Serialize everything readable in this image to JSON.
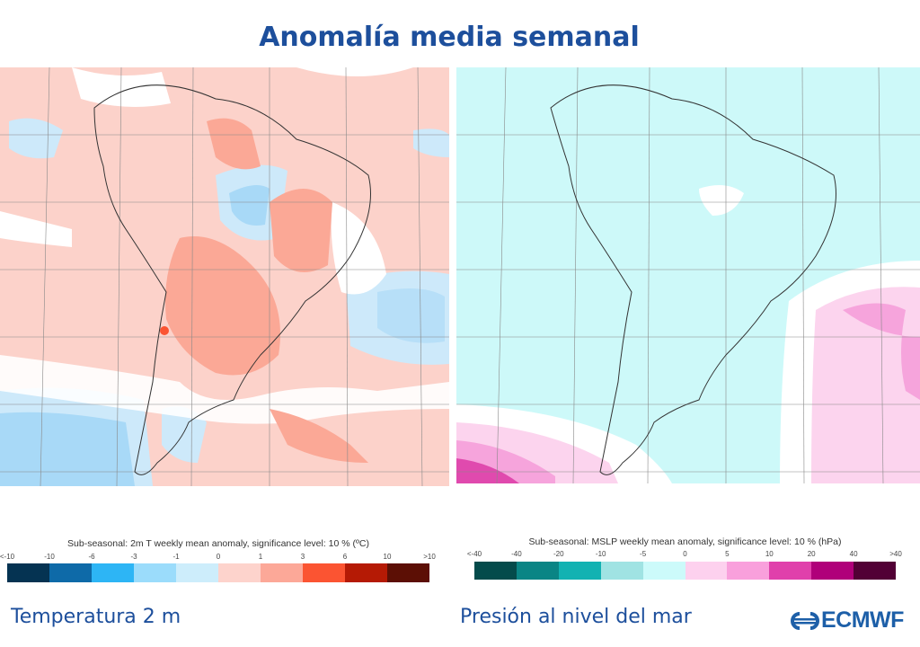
{
  "title": "Anomalía media semanal",
  "panels": [
    {
      "label": "Temperatura 2 m",
      "colorbar": {
        "title": "Sub-seasonal: 2m T weekly mean anomaly, significance level: 10 % (ºC)",
        "ticks": [
          "<-10",
          "-10",
          "-6",
          "-3",
          "-1",
          "0",
          "1",
          "3",
          "6",
          "10",
          ">10"
        ],
        "colors": [
          "#053352",
          "#0e6aa8",
          "#2db5f5",
          "#9bdcfb",
          "#cdedfb",
          "#fdd3cc",
          "#fca898",
          "#fb5432",
          "#b51a05",
          "#5c0f05"
        ]
      },
      "map_colors": {
        "base": "#fcd2ca",
        "warm": "#fba896",
        "cool": "#cde9fa",
        "cool2": "#a8d9f7",
        "neutral": "#ffffff"
      }
    },
    {
      "label": "Presión al nivel del mar",
      "colorbar": {
        "title": "Sub-seasonal: MSLP weekly mean anomaly, significance level: 10 % (hPa)",
        "ticks": [
          "<-40",
          "-40",
          "-20",
          "-10",
          "-5",
          "0",
          "5",
          "10",
          "20",
          "40",
          ">40"
        ],
        "colors": [
          "#044b4b",
          "#0a8585",
          "#12b2b2",
          "#a0e3e3",
          "#ccfafa",
          "#fdd1ee",
          "#f9a0dc",
          "#e040ab",
          "#b0007a",
          "#520035"
        ]
      },
      "map_colors": {
        "base": "#cdf9f9",
        "pink1": "#fcd4ee",
        "pink2": "#f6a4dc",
        "pink3": "#e04aae",
        "neutral": "#ffffff"
      }
    }
  ],
  "logo": {
    "text": "ECMWF",
    "color": "#1d5fa8"
  }
}
